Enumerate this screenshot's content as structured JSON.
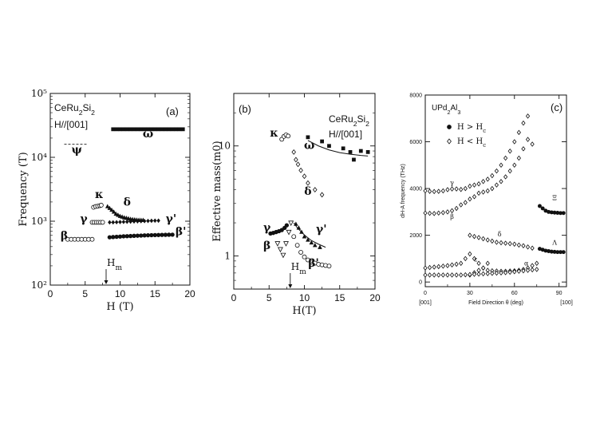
{
  "figure": {
    "panels": [
      "a",
      "b",
      "c"
    ]
  },
  "chart_data": [
    {
      "id": "a",
      "type": "scatter",
      "panel_label": "(a)",
      "material": "CeRu2Si2",
      "field_dir": "H//[001]",
      "xlabel": "H (T)",
      "ylabel": "Frequency (T)",
      "xscale": "linear",
      "yscale": "log",
      "xlim": [
        0,
        20
      ],
      "ylim": [
        100,
        100000
      ],
      "xticks": [
        0,
        5,
        10,
        15,
        20
      ],
      "yticks": [
        100,
        1000,
        10000,
        100000
      ],
      "ytick_labels": [
        "10²",
        "10³",
        "10⁴",
        "10⁵"
      ],
      "annotation": "Hm",
      "annotation_x": 8,
      "series": [
        {
          "name": "ω",
          "marker": "square",
          "x": [
            9.0,
            9.5,
            10.0,
            10.5,
            11.0,
            11.5,
            12.0,
            12.5,
            13.0,
            13.5,
            14.0,
            14.5,
            15.0,
            15.5,
            16.0,
            16.5,
            17.0,
            17.5,
            18.0,
            18.5,
            19.0
          ],
          "y": [
            27500,
            27500,
            27500,
            27500,
            27500,
            27500,
            27500,
            27500,
            27500,
            27500,
            27500,
            27500,
            27500,
            27500,
            27500,
            27500,
            27500,
            27500,
            27500,
            27500,
            27500
          ]
        },
        {
          "name": "κ",
          "marker": "open-circle",
          "x": [
            6.2,
            6.5,
            6.8,
            7.1,
            7.3
          ],
          "y": [
            1650,
            1700,
            1720,
            1750,
            1780
          ]
        },
        {
          "name": "δ",
          "marker": "filled-triangle",
          "x": [
            8.2,
            8.5,
            8.8,
            9.1,
            9.4,
            9.7,
            10.0,
            10.3,
            10.6,
            10.9,
            11.2,
            11.5,
            11.8,
            12.1,
            12.4,
            12.7,
            13.0,
            13.3
          ],
          "y": [
            1700,
            1600,
            1500,
            1400,
            1300,
            1250,
            1200,
            1170,
            1140,
            1120,
            1100,
            1080,
            1070,
            1060,
            1050,
            1045,
            1040,
            1040
          ]
        },
        {
          "name": "γ",
          "marker": "open-circle",
          "x": [
            6.0,
            6.3,
            6.6,
            6.9,
            7.2,
            7.5
          ],
          "y": [
            960,
            960,
            960,
            960,
            960,
            960
          ]
        },
        {
          "name": "γ'",
          "marker": "filled-diamond",
          "x": [
            8.5,
            9.0,
            9.5,
            10.0,
            10.5,
            11.0,
            11.5,
            12.0,
            12.5,
            13.0,
            13.5,
            14.0,
            14.5,
            15.0,
            15.5
          ],
          "y": [
            960,
            960,
            965,
            970,
            975,
            980,
            985,
            990,
            995,
            1000,
            1005,
            1010,
            1015,
            1020,
            1020
          ]
        },
        {
          "name": "β",
          "marker": "open-circle",
          "x": [
            2.5,
            3.0,
            3.5,
            4.0,
            4.5,
            5.0,
            5.5,
            6.0
          ],
          "y": [
            520,
            520,
            520,
            520,
            520,
            520,
            520,
            520
          ]
        },
        {
          "name": "β'",
          "marker": "filled-circle",
          "x": [
            8.5,
            9.0,
            9.5,
            10.0,
            10.5,
            11.0,
            11.5,
            12.0,
            12.5,
            13.0,
            13.5,
            14.0,
            14.5,
            15.0,
            15.5,
            16.0,
            16.5,
            17.0,
            17.5
          ],
          "y": [
            560,
            565,
            570,
            575,
            580,
            583,
            586,
            590,
            593,
            596,
            599,
            602,
            604,
            606,
            608,
            610,
            612,
            614,
            615
          ]
        }
      ],
      "psi_line": {
        "name": "ψ",
        "x": [
          2.0,
          5.2
        ],
        "y": 16000
      },
      "label_positions": {
        "ω": [
          14,
          20500
        ],
        "κ": [
          7.0,
          2300
        ],
        "δ": [
          11.0,
          1750
        ],
        "γ": [
          4.8,
          960
        ],
        "γ'": [
          17.3,
          960
        ],
        "β": [
          2.0,
          520
        ],
        "β'": [
          18.7,
          600
        ],
        "ψ": [
          3.8,
          11500
        ]
      }
    },
    {
      "id": "b",
      "type": "scatter",
      "panel_label": "(b)",
      "material": "CeRu2Si2",
      "field_dir": "H//[001]",
      "xlabel": "H(T)",
      "ylabel": "Effective mass(m0)",
      "xscale": "linear",
      "yscale": "log",
      "xlim": [
        0,
        20
      ],
      "ylim": [
        0.5,
        30
      ],
      "xticks": [
        0,
        5,
        10,
        15,
        20
      ],
      "yticks": [
        1,
        10
      ],
      "ytick_labels": [
        "1",
        "10"
      ],
      "annotation": "Hm",
      "annotation_x": 8,
      "series": [
        {
          "name": "κ",
          "marker": "open-circle",
          "x": [
            6.8,
            7.1,
            7.4,
            7.7
          ],
          "y": [
            11.5,
            12.2,
            12.6,
            12.3
          ]
        },
        {
          "name": "ω",
          "marker": "filled-square",
          "x": [
            10.5,
            12.5,
            13.5,
            15.5,
            16.5,
            17.0,
            18.0,
            19.0
          ],
          "y": [
            12.0,
            11.0,
            10.0,
            9.5,
            8.8,
            7.5,
            9.0,
            8.8
          ]
        },
        {
          "name": "ω fit",
          "marker": "line",
          "x": [
            10.5,
            12.0,
            13.5,
            15.0,
            16.5,
            18.0,
            19.0
          ],
          "y": [
            11.2,
            10.0,
            9.2,
            8.7,
            8.4,
            8.2,
            8.1
          ]
        },
        {
          "name": "δ",
          "marker": "open-diamond",
          "x": [
            8.5,
            8.8,
            9.1,
            9.5,
            10.0,
            10.5,
            11.5,
            12.5
          ],
          "y": [
            8.8,
            7.5,
            6.8,
            6.0,
            5.3,
            4.6,
            4.0,
            3.6
          ]
        },
        {
          "name": "γ",
          "marker": "filled-circle",
          "x": [
            5.2,
            5.6,
            6.0,
            6.4,
            6.8,
            7.2,
            7.5
          ],
          "y": [
            1.6,
            1.62,
            1.65,
            1.68,
            1.72,
            1.8,
            1.9
          ]
        },
        {
          "name": "γ'",
          "marker": "filled-triangle",
          "x": [
            8.8,
            9.2,
            9.6,
            10.0,
            10.5,
            11.0,
            11.5,
            12.2
          ],
          "y": [
            1.95,
            1.8,
            1.65,
            1.5,
            1.4,
            1.32,
            1.25,
            1.2
          ]
        },
        {
          "name": "γ' fit",
          "marker": "line",
          "x": [
            8.5,
            9.0,
            10.0,
            11.0,
            12.0,
            13.0
          ],
          "y": [
            2.0,
            1.8,
            1.55,
            1.38,
            1.28,
            1.2
          ]
        },
        {
          "name": "β",
          "marker": "open-triangle-down",
          "x": [
            6.2,
            6.6,
            7.0,
            7.4,
            7.8,
            8.1
          ],
          "y": [
            1.3,
            1.15,
            1.02,
            1.3,
            1.65,
            2.0
          ]
        },
        {
          "name": "β'",
          "marker": "open-circle",
          "x": [
            8.5,
            9.0,
            9.5,
            10.0,
            10.5,
            11.0,
            11.5,
            12.0,
            12.5,
            13.0,
            13.5
          ],
          "y": [
            1.5,
            1.25,
            1.08,
            0.98,
            0.92,
            0.88,
            0.86,
            0.84,
            0.83,
            0.82,
            0.81
          ]
        }
      ],
      "label_positions": {
        "κ": [
          5.7,
          12.2
        ],
        "ω": [
          10.7,
          9.4
        ],
        "δ": [
          10.5,
          3.6
        ],
        "γ": [
          4.7,
          1.68
        ],
        "γ'": [
          12.4,
          1.62
        ],
        "β": [
          4.7,
          1.15
        ],
        "β'": [
          11.3,
          0.8
        ]
      }
    },
    {
      "id": "c",
      "type": "scatter",
      "panel_label": "(c)",
      "material": "UPd2Al3",
      "xlabel": "Field Direction θ (deg)",
      "ylabel": "dH-A frequency (THz)",
      "xscale": "linear",
      "yscale": "linear",
      "xlim": [
        0,
        95
      ],
      "ylim": [
        -200,
        8000
      ],
      "xticks": [
        0,
        30,
        60,
        90
      ],
      "yticks": [
        0,
        2000,
        4000,
        6000,
        8000
      ],
      "xtick_sub": [
        "[001]",
        "[100]"
      ],
      "legend": [
        {
          "label": "H > Hc",
          "marker": "filled-circle"
        },
        {
          "label": "H < Hc",
          "marker": "open-diamond"
        }
      ],
      "series": [
        {
          "name": "ε",
          "marker": "filled-circle",
          "x": [
            77,
            79,
            81,
            83,
            85,
            87,
            89,
            91,
            93
          ],
          "y": [
            3250,
            3150,
            3050,
            3000,
            2980,
            2970,
            2960,
            2950,
            2950
          ]
        },
        {
          "name": "Λ",
          "marker": "filled-circle",
          "x": [
            77,
            79,
            81,
            83,
            85,
            87,
            89,
            91,
            93
          ],
          "y": [
            1420,
            1380,
            1340,
            1320,
            1300,
            1290,
            1280,
            1280,
            1280
          ]
        },
        {
          "name": "γ",
          "marker": "open-diamond",
          "x": [
            0,
            3,
            6,
            9,
            12,
            15,
            18,
            21,
            24,
            27,
            30,
            33,
            36,
            39,
            42,
            45,
            48,
            51,
            54,
            57,
            60,
            63,
            66,
            69
          ],
          "y": [
            3900,
            3880,
            3870,
            3880,
            3900,
            3950,
            3980,
            3980,
            3960,
            4000,
            4100,
            4150,
            4200,
            4300,
            4400,
            4550,
            4750,
            5000,
            5300,
            5600,
            6000,
            6400,
            6800,
            7100
          ]
        },
        {
          "name": "β",
          "marker": "open-diamond",
          "x": [
            0,
            3,
            6,
            9,
            12,
            15,
            18,
            21,
            24,
            27,
            30,
            33,
            36,
            39,
            42,
            45,
            48,
            51,
            54,
            57,
            60,
            63,
            66,
            69,
            72
          ],
          "y": [
            2950,
            2940,
            2930,
            2950,
            2970,
            3000,
            3050,
            3150,
            3300,
            3400,
            3550,
            3650,
            3800,
            3850,
            3900,
            4000,
            4150,
            4300,
            4500,
            4750,
            5000,
            5300,
            5700,
            6100,
            5900
          ]
        },
        {
          "name": "δ",
          "marker": "open-diamond",
          "x": [
            30,
            33,
            36,
            39,
            42,
            45,
            48,
            51,
            54,
            57,
            60,
            63,
            66,
            69,
            72
          ],
          "y": [
            2000,
            1950,
            1900,
            1850,
            1800,
            1750,
            1700,
            1680,
            1660,
            1640,
            1620,
            1580,
            1550,
            1500,
            1450
          ]
        },
        {
          "name": "ε low",
          "marker": "open-diamond",
          "x": [
            30,
            33,
            36,
            39,
            42
          ],
          "y": [
            300,
            400,
            500,
            600,
            800
          ]
        },
        {
          "name": "η",
          "marker": "open-diamond",
          "x": [
            0,
            3,
            6,
            9,
            12,
            15,
            18,
            21,
            24,
            27,
            30,
            33,
            36,
            39,
            42,
            45,
            48,
            51,
            54,
            57,
            60,
            63,
            66,
            69,
            72,
            75
          ],
          "y": [
            600,
            620,
            640,
            660,
            680,
            700,
            730,
            760,
            800,
            1000,
            1200,
            1000,
            800,
            600,
            500,
            480,
            470,
            460,
            460,
            470,
            480,
            500,
            540,
            600,
            700,
            800
          ]
        },
        {
          "name": "α",
          "marker": "open-diamond",
          "x": [
            0,
            3,
            6,
            9,
            12,
            15,
            18,
            21,
            24,
            27,
            30,
            33,
            36,
            39,
            42,
            45,
            48,
            51,
            54,
            57,
            60,
            63,
            66,
            69,
            72,
            75
          ],
          "y": [
            300,
            300,
            300,
            300,
            300,
            300,
            300,
            300,
            300,
            310,
            320,
            330,
            340,
            350,
            360,
            370,
            380,
            390,
            400,
            420,
            440,
            460,
            480,
            500,
            520,
            540
          ]
        }
      ],
      "label_positions": {
        "γ": [
          18,
          4150
        ],
        "β": [
          18,
          2700
        ],
        "δ": [
          50,
          1950
        ],
        "ε": [
          34,
          880
        ],
        "α": [
          68,
          700
        ],
        "Ξ": [
          87,
          3500
        ],
        "Λ": [
          87,
          1600
        ]
      },
      "label_texts": {
        "γ": "γ",
        "β": "β",
        "δ": "δ",
        "ε": "ε",
        "α": "α",
        "Ξ": "Ξ",
        "Λ": "Λ"
      }
    }
  ]
}
